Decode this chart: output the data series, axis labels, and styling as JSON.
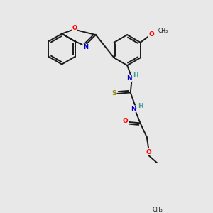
{
  "background_color": "#e8e8e8",
  "bond_color": "#1a1a1a",
  "figsize": [
    3.0,
    3.0
  ],
  "dpi": 100,
  "atom_colors": {
    "N": "#0000cd",
    "O": "#ff0000",
    "S": "#8b8b00",
    "C": "#1a1a1a",
    "H": "#4a9a9a"
  },
  "lw": 1.4
}
